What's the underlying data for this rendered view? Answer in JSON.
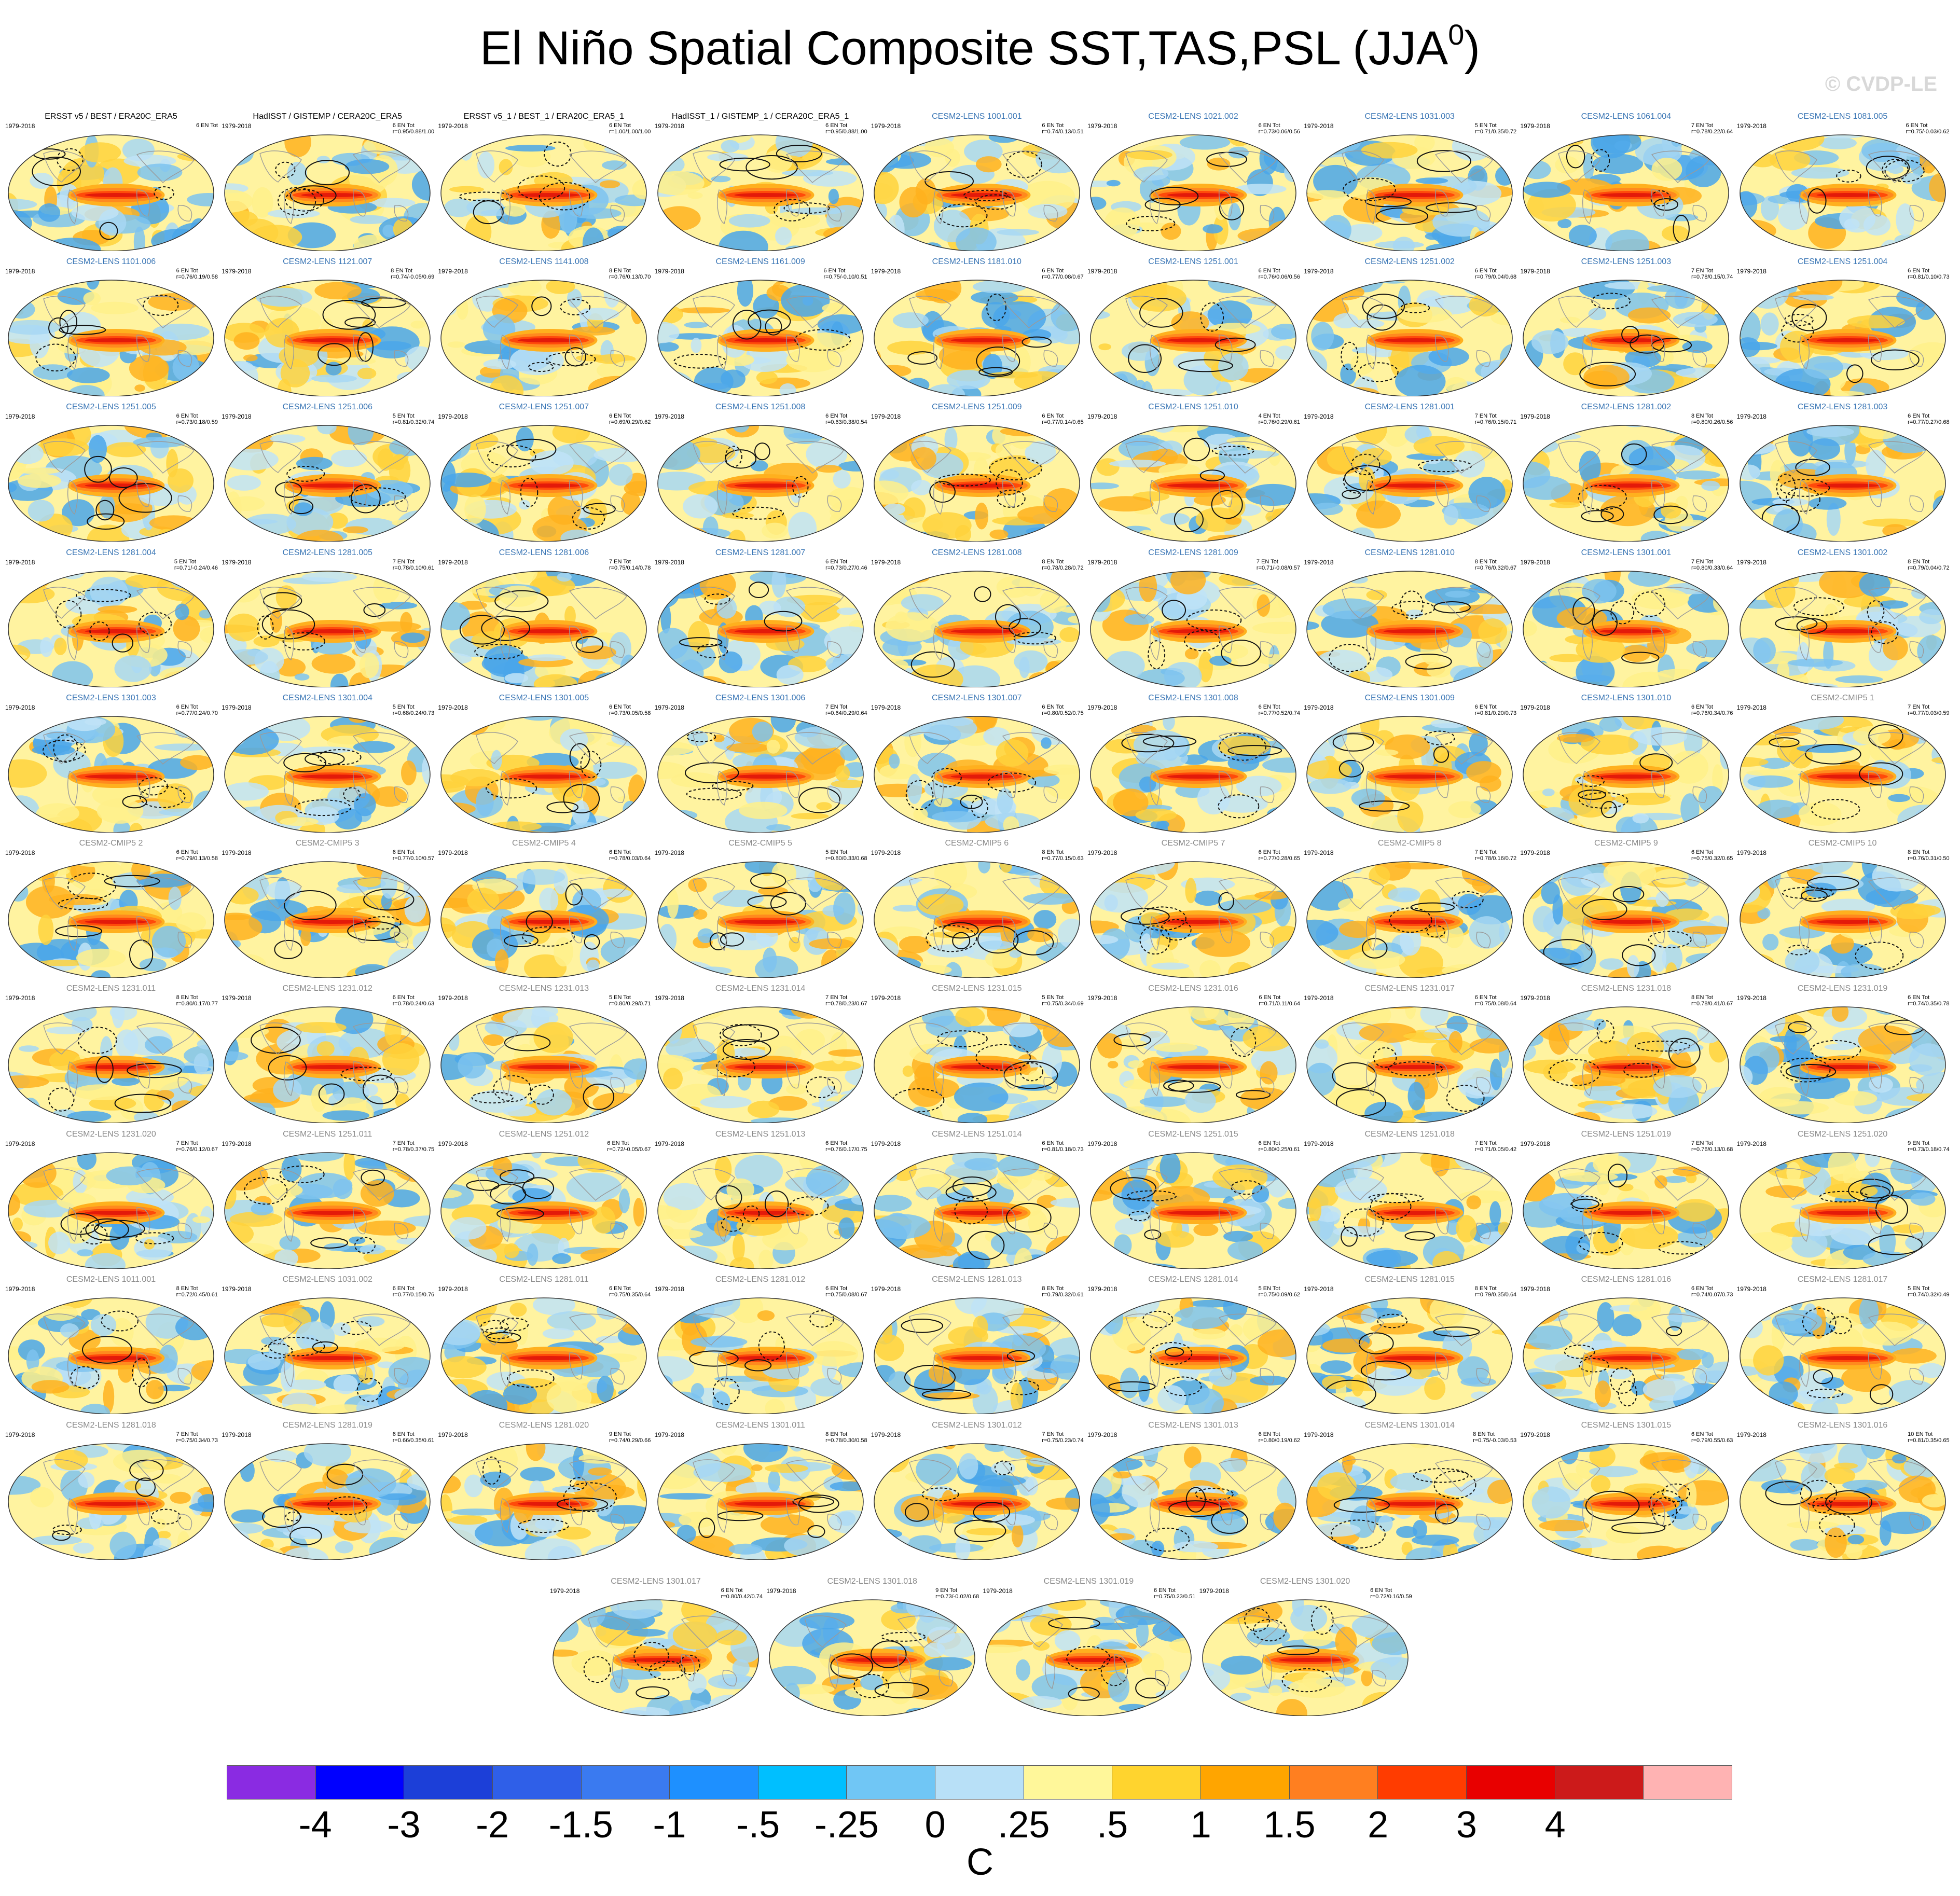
{
  "title": "El Niño Spatial Composite SST,TAS,PSL (JJA",
  "title_superscript": "0",
  "title_close": ")",
  "watermark": "© CVDP-LE",
  "period": "1979-2018",
  "panel_title_colors": {
    "obs": "#000000",
    "lens_blue": "#3a76b5",
    "gray": "#8a8a8a"
  },
  "panels": [
    {
      "title": "ERSST v5 / BEST / ERA20C_ERA5",
      "color": "obs",
      "count": "6 EN Tot",
      "r": ""
    },
    {
      "title": "HadISST / GISTEMP / CERA20C_ERA5",
      "color": "obs",
      "count": "6 EN Tot",
      "r": "r=0.95/0.88/1.00"
    },
    {
      "title": "ERSST v5_1 / BEST_1 / ERA20C_ERA5_1",
      "color": "obs",
      "count": "6 EN Tot",
      "r": "r=1.00/1.00/1.00"
    },
    {
      "title": "HadISST_1 / GISTEMP_1 / CERA20C_ERA5_1",
      "color": "obs",
      "count": "6 EN Tot",
      "r": "r=0.95/0.88/1.00"
    },
    {
      "title": "CESM2-LENS 1001.001",
      "color": "lens_blue",
      "count": "6 EN Tot",
      "r": "r=0.74/0.13/0.51"
    },
    {
      "title": "CESM2-LENS 1021.002",
      "color": "lens_blue",
      "count": "6 EN Tot",
      "r": "r=0.73/0.06/0.56"
    },
    {
      "title": "CESM2-LENS 1031.003",
      "color": "lens_blue",
      "count": "5 EN Tot",
      "r": "r=0.71/0.35/0.72"
    },
    {
      "title": "CESM2-LENS 1061.004",
      "color": "lens_blue",
      "count": "7 EN Tot",
      "r": "r=0.78/0.22/0.64"
    },
    {
      "title": "CESM2-LENS 1081.005",
      "color": "lens_blue",
      "count": "6 EN Tot",
      "r": "r=0.75/-0.03/0.62"
    },
    {
      "title": "CESM2-LENS 1101.006",
      "color": "lens_blue",
      "count": "6 EN Tot",
      "r": "r=0.76/0.19/0.58"
    },
    {
      "title": "CESM2-LENS 1121.007",
      "color": "lens_blue",
      "count": "8 EN Tot",
      "r": "r=0.74/-0.05/0.69"
    },
    {
      "title": "CESM2-LENS 1141.008",
      "color": "lens_blue",
      "count": "8 EN Tot",
      "r": "r=0.76/0.13/0.70"
    },
    {
      "title": "CESM2-LENS 1161.009",
      "color": "lens_blue",
      "count": "6 EN Tot",
      "r": "r=0.75/-0.10/0.51"
    },
    {
      "title": "CESM2-LENS 1181.010",
      "color": "lens_blue",
      "count": "6 EN Tot",
      "r": "r=0.77/0.08/0.67"
    },
    {
      "title": "CESM2-LENS 1251.001",
      "color": "lens_blue",
      "count": "6 EN Tot",
      "r": "r=0.76/0.06/0.56"
    },
    {
      "title": "CESM2-LENS 1251.002",
      "color": "lens_blue",
      "count": "6 EN Tot",
      "r": "r=0.79/0.04/0.68"
    },
    {
      "title": "CESM2-LENS 1251.003",
      "color": "lens_blue",
      "count": "7 EN Tot",
      "r": "r=0.78/0.15/0.74"
    },
    {
      "title": "CESM2-LENS 1251.004",
      "color": "lens_blue",
      "count": "6 EN Tot",
      "r": "r=0.81/0.10/0.73"
    },
    {
      "title": "CESM2-LENS 1251.005",
      "color": "lens_blue",
      "count": "6 EN Tot",
      "r": "r=0.73/0.18/0.59"
    },
    {
      "title": "CESM2-LENS 1251.006",
      "color": "lens_blue",
      "count": "5 EN Tot",
      "r": "r=0.81/0.32/0.74"
    },
    {
      "title": "CESM2-LENS 1251.007",
      "color": "lens_blue",
      "count": "6 EN Tot",
      "r": "r=0.69/0.29/0.62"
    },
    {
      "title": "CESM2-LENS 1251.008",
      "color": "lens_blue",
      "count": "6 EN Tot",
      "r": "r=0.63/0.38/0.54"
    },
    {
      "title": "CESM2-LENS 1251.009",
      "color": "lens_blue",
      "count": "6 EN Tot",
      "r": "r=0.77/0.14/0.65"
    },
    {
      "title": "CESM2-LENS 1251.010",
      "color": "lens_blue",
      "count": "4 EN Tot",
      "r": "r=0.76/0.29/0.61"
    },
    {
      "title": "CESM2-LENS 1281.001",
      "color": "lens_blue",
      "count": "7 EN Tot",
      "r": "r=0.76/0.15/0.71"
    },
    {
      "title": "CESM2-LENS 1281.002",
      "color": "lens_blue",
      "count": "8 EN Tot",
      "r": "r=0.80/0.26/0.56"
    },
    {
      "title": "CESM2-LENS 1281.003",
      "color": "lens_blue",
      "count": "6 EN Tot",
      "r": "r=0.77/0.27/0.68"
    },
    {
      "title": "CESM2-LENS 1281.004",
      "color": "lens_blue",
      "count": "5 EN Tot",
      "r": "r=0.71/-0.24/0.46"
    },
    {
      "title": "CESM2-LENS 1281.005",
      "color": "lens_blue",
      "count": "7 EN Tot",
      "r": "r=0.78/0.10/0.61"
    },
    {
      "title": "CESM2-LENS 1281.006",
      "color": "lens_blue",
      "count": "7 EN Tot",
      "r": "r=0.75/0.14/0.78"
    },
    {
      "title": "CESM2-LENS 1281.007",
      "color": "lens_blue",
      "count": "6 EN Tot",
      "r": "r=0.73/0.27/0.46"
    },
    {
      "title": "CESM2-LENS 1281.008",
      "color": "lens_blue",
      "count": "8 EN Tot",
      "r": "r=0.78/0.28/0.72"
    },
    {
      "title": "CESM2-LENS 1281.009",
      "color": "lens_blue",
      "count": "7 EN Tot",
      "r": "r=0.71/-0.08/0.57"
    },
    {
      "title": "CESM2-LENS 1281.010",
      "color": "lens_blue",
      "count": "8 EN Tot",
      "r": "r=0.76/0.32/0.67"
    },
    {
      "title": "CESM2-LENS 1301.001",
      "color": "lens_blue",
      "count": "7 EN Tot",
      "r": "r=0.80/0.33/0.64"
    },
    {
      "title": "CESM2-LENS 1301.002",
      "color": "lens_blue",
      "count": "8 EN Tot",
      "r": "r=0.79/0.04/0.72"
    },
    {
      "title": "CESM2-LENS 1301.003",
      "color": "lens_blue",
      "count": "6 EN Tot",
      "r": "r=0.77/0.24/0.70"
    },
    {
      "title": "CESM2-LENS 1301.004",
      "color": "lens_blue",
      "count": "5 EN Tot",
      "r": "r=0.68/0.24/0.73"
    },
    {
      "title": "CESM2-LENS 1301.005",
      "color": "lens_blue",
      "count": "6 EN Tot",
      "r": "r=0.73/0.05/0.58"
    },
    {
      "title": "CESM2-LENS 1301.006",
      "color": "lens_blue",
      "count": "7 EN Tot",
      "r": "r=0.64/0.29/0.64"
    },
    {
      "title": "CESM2-LENS 1301.007",
      "color": "lens_blue",
      "count": "6 EN Tot",
      "r": "r=0.80/0.52/0.75"
    },
    {
      "title": "CESM2-LENS 1301.008",
      "color": "lens_blue",
      "count": "6 EN Tot",
      "r": "r=0.77/0.52/0.74"
    },
    {
      "title": "CESM2-LENS 1301.009",
      "color": "lens_blue",
      "count": "6 EN Tot",
      "r": "r=0.81/0.20/0.73"
    },
    {
      "title": "CESM2-LENS 1301.010",
      "color": "lens_blue",
      "count": "6 EN Tot",
      "r": "r=0.76/0.34/0.76"
    },
    {
      "title": "CESM2-CMIP5 1",
      "color": "gray",
      "count": "7 EN Tot",
      "r": "r=0.77/0.03/0.59"
    },
    {
      "title": "CESM2-CMIP5 2",
      "color": "gray",
      "count": "6 EN Tot",
      "r": "r=0.79/0.13/0.58"
    },
    {
      "title": "CESM2-CMIP5 3",
      "color": "gray",
      "count": "6 EN Tot",
      "r": "r=0.77/0.10/0.57"
    },
    {
      "title": "CESM2-CMIP5 4",
      "color": "gray",
      "count": "6 EN Tot",
      "r": "r=0.78/0.03/0.64"
    },
    {
      "title": "CESM2-CMIP5 5",
      "color": "gray",
      "count": "5 EN Tot",
      "r": "r=0.80/0.33/0.68"
    },
    {
      "title": "CESM2-CMIP5 6",
      "color": "gray",
      "count": "8 EN Tot",
      "r": "r=0.77/0.15/0.63"
    },
    {
      "title": "CESM2-CMIP5 7",
      "color": "gray",
      "count": "6 EN Tot",
      "r": "r=0.77/0.28/0.65"
    },
    {
      "title": "CESM2-CMIP5 8",
      "color": "gray",
      "count": "7 EN Tot",
      "r": "r=0.78/0.16/0.72"
    },
    {
      "title": "CESM2-CMIP5 9",
      "color": "gray",
      "count": "6 EN Tot",
      "r": "r=0.75/0.32/0.65"
    },
    {
      "title": "CESM2-CMIP5 10",
      "color": "gray",
      "count": "8 EN Tot",
      "r": "r=0.76/0.31/0.50"
    },
    {
      "title": "CESM2-LENS 1231.011",
      "color": "gray",
      "count": "8 EN Tot",
      "r": "r=0.80/0.17/0.77"
    },
    {
      "title": "CESM2-LENS 1231.012",
      "color": "gray",
      "count": "6 EN Tot",
      "r": "r=0.78/0.24/0.63"
    },
    {
      "title": "CESM2-LENS 1231.013",
      "color": "gray",
      "count": "5 EN Tot",
      "r": "r=0.80/0.29/0.71"
    },
    {
      "title": "CESM2-LENS 1231.014",
      "color": "gray",
      "count": "7 EN Tot",
      "r": "r=0.78/0.23/0.67"
    },
    {
      "title": "CESM2-LENS 1231.015",
      "color": "gray",
      "count": "5 EN Tot",
      "r": "r=0.75/0.34/0.69"
    },
    {
      "title": "CESM2-LENS 1231.016",
      "color": "gray",
      "count": "6 EN Tot",
      "r": "r=0.71/0.11/0.64"
    },
    {
      "title": "CESM2-LENS 1231.017",
      "color": "gray",
      "count": "6 EN Tot",
      "r": "r=0.75/0.08/0.64"
    },
    {
      "title": "CESM2-LENS 1231.018",
      "color": "gray",
      "count": "8 EN Tot",
      "r": "r=0.78/0.41/0.67"
    },
    {
      "title": "CESM2-LENS 1231.019",
      "color": "gray",
      "count": "6 EN Tot",
      "r": "r=0.74/0.35/0.78"
    },
    {
      "title": "CESM2-LENS 1231.020",
      "color": "gray",
      "count": "7 EN Tot",
      "r": "r=0.76/0.12/0.67"
    },
    {
      "title": "CESM2-LENS 1251.011",
      "color": "gray",
      "count": "7 EN Tot",
      "r": "r=0.78/0.37/0.75"
    },
    {
      "title": "CESM2-LENS 1251.012",
      "color": "gray",
      "count": "6 EN Tot",
      "r": "r=0.72/-0.05/0.67"
    },
    {
      "title": "CESM2-LENS 1251.013",
      "color": "gray",
      "count": "6 EN Tot",
      "r": "r=0.76/0.17/0.75"
    },
    {
      "title": "CESM2-LENS 1251.014",
      "color": "gray",
      "count": "6 EN Tot",
      "r": "r=0.81/0.18/0.73"
    },
    {
      "title": "CESM2-LENS 1251.015",
      "color": "gray",
      "count": "6 EN Tot",
      "r": "r=0.80/0.25/0.61"
    },
    {
      "title": "CESM2-LENS 1251.018",
      "color": "gray",
      "count": "7 EN Tot",
      "r": "r=0.71/0.05/0.42"
    },
    {
      "title": "CESM2-LENS 1251.019",
      "color": "gray",
      "count": "7 EN Tot",
      "r": "r=0.76/0.13/0.68"
    },
    {
      "title": "CESM2-LENS 1251.020",
      "color": "gray",
      "count": "9 EN Tot",
      "r": "r=0.73/0.18/0.74"
    },
    {
      "title": "CESM2-LENS 1011.001",
      "color": "gray",
      "count": "8 EN Tot",
      "r": "r=0.72/0.45/0.61"
    },
    {
      "title": "CESM2-LENS 1031.002",
      "color": "gray",
      "count": "6 EN Tot",
      "r": "r=0.77/0.15/0.76"
    },
    {
      "title": "CESM2-LENS 1281.011",
      "color": "gray",
      "count": "6 EN Tot",
      "r": "r=0.75/0.35/0.64"
    },
    {
      "title": "CESM2-LENS 1281.012",
      "color": "gray",
      "count": "6 EN Tot",
      "r": "r=0.75/0.08/0.67"
    },
    {
      "title": "CESM2-LENS 1281.013",
      "color": "gray",
      "count": "8 EN Tot",
      "r": "r=0.79/0.32/0.61"
    },
    {
      "title": "CESM2-LENS 1281.014",
      "color": "gray",
      "count": "5 EN Tot",
      "r": "r=0.75/0.09/0.62"
    },
    {
      "title": "CESM2-LENS 1281.015",
      "color": "gray",
      "count": "8 EN Tot",
      "r": "r=0.79/0.35/0.64"
    },
    {
      "title": "CESM2-LENS 1281.016",
      "color": "gray",
      "count": "6 EN Tot",
      "r": "r=0.74/0.07/0.73"
    },
    {
      "title": "CESM2-LENS 1281.017",
      "color": "gray",
      "count": "5 EN Tot",
      "r": "r=0.74/0.32/0.49"
    },
    {
      "title": "CESM2-LENS 1281.018",
      "color": "gray",
      "count": "7 EN Tot",
      "r": "r=0.75/0.34/0.73"
    },
    {
      "title": "CESM2-LENS 1281.019",
      "color": "gray",
      "count": "6 EN Tot",
      "r": "r=0.66/0.35/0.61"
    },
    {
      "title": "CESM2-LENS 1281.020",
      "color": "gray",
      "count": "9 EN Tot",
      "r": "r=0.74/0.29/0.66"
    },
    {
      "title": "CESM2-LENS 1301.011",
      "color": "gray",
      "count": "8 EN Tot",
      "r": "r=0.78/0.30/0.58"
    },
    {
      "title": "CESM2-LENS 1301.012",
      "color": "gray",
      "count": "7 EN Tot",
      "r": "r=0.75/0.23/0.74"
    },
    {
      "title": "CESM2-LENS 1301.013",
      "color": "gray",
      "count": "6 EN Tot",
      "r": "r=0.80/0.19/0.62"
    },
    {
      "title": "CESM2-LENS 1301.014",
      "color": "gray",
      "count": "8 EN Tot",
      "r": "r=0.75/-0.03/0.53"
    },
    {
      "title": "CESM2-LENS 1301.015",
      "color": "gray",
      "count": "6 EN Tot",
      "r": "r=0.79/0.55/0.63"
    },
    {
      "title": "CESM2-LENS 1301.016",
      "color": "gray",
      "count": "10 EN Tot",
      "r": "r=0.81/0.35/0.65"
    },
    {
      "title": "CESM2-LENS 1301.017",
      "color": "gray",
      "count": "6 EN Tot",
      "r": "r=0.80/0.42/0.74"
    },
    {
      "title": "CESM2-LENS 1301.018",
      "color": "gray",
      "count": "9 EN Tot",
      "r": "r=0.73/-0.02/0.68"
    },
    {
      "title": "CESM2-LENS 1301.019",
      "color": "gray",
      "count": "6 EN Tot",
      "r": "r=0.75/0.23/0.51"
    },
    {
      "title": "CESM2-LENS 1301.020",
      "color": "gray",
      "count": "6 EN Tot",
      "r": "r=0.72/0.16/0.59"
    }
  ],
  "colorbar": {
    "colors": [
      "#8a2be2",
      "#0000ff",
      "#1c3fd8",
      "#2f5fe8",
      "#3a7af0",
      "#1e90ff",
      "#00bfff",
      "#70c6f5",
      "#b8e0f7",
      "#fff79a",
      "#ffd42e",
      "#ffa500",
      "#ff7f20",
      "#ff3c00",
      "#e80000",
      "#cc1a1a",
      "#ffb3b3"
    ],
    "ticks": [
      "-4",
      "-3",
      "-2",
      "-1.5",
      "-1",
      "-.5",
      "-.25",
      "0",
      ".25",
      ".5",
      "1",
      "1.5",
      "2",
      "3",
      "4"
    ],
    "units": "C"
  }
}
